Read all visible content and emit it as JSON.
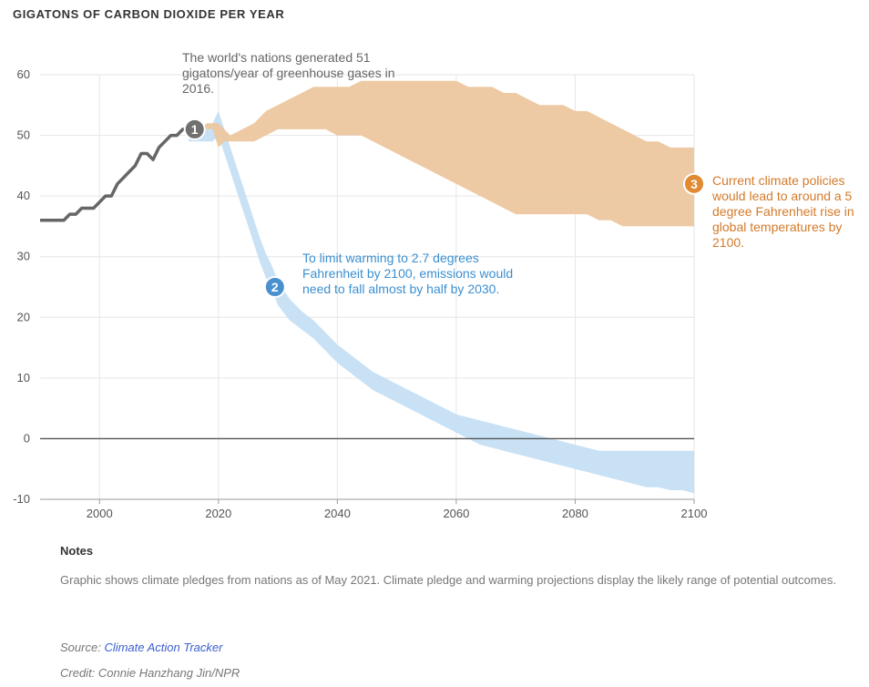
{
  "chart_data": {
    "type": "area",
    "title": "GIGATONS OF CARBON DIOXIDE PER YEAR",
    "xlim": [
      1990,
      2100
    ],
    "ylim": [
      -10,
      60
    ],
    "x_ticks": [
      2000,
      2020,
      2040,
      2060,
      2080,
      2100
    ],
    "y_ticks": [
      -10,
      0,
      10,
      20,
      30,
      40,
      50,
      60
    ],
    "grid": true,
    "series": [
      {
        "kind": "line",
        "color": "#666666",
        "x": [
          1990,
          1991,
          1992,
          1993,
          1994,
          1995,
          1996,
          1997,
          1998,
          1999,
          2000,
          2001,
          2002,
          2003,
          2004,
          2005,
          2006,
          2007,
          2008,
          2009,
          2010,
          2011,
          2012,
          2013,
          2014,
          2015,
          2016
        ],
        "y": [
          36,
          36,
          36,
          36,
          36,
          37,
          37,
          38,
          38,
          38,
          39,
          40,
          40,
          42,
          43,
          44,
          45,
          47,
          47,
          46,
          48,
          49,
          50,
          50,
          51,
          51,
          51
        ]
      },
      {
        "kind": "band",
        "color": "#c5dff4",
        "x": [
          2015,
          2016,
          2017,
          2018,
          2019,
          2020,
          2021,
          2022,
          2023,
          2024,
          2025,
          2026,
          2027,
          2028,
          2029,
          2030,
          2032,
          2034,
          2036,
          2038,
          2040,
          2042,
          2044,
          2046,
          2048,
          2050,
          2052,
          2054,
          2056,
          2058,
          2060,
          2062,
          2064,
          2066,
          2068,
          2070,
          2072,
          2074,
          2076,
          2078,
          2080,
          2082,
          2084,
          2086,
          2088,
          2090,
          2092,
          2094,
          2096,
          2098,
          2100
        ],
        "low": [
          49,
          49,
          49,
          49,
          49,
          50,
          47,
          44,
          41,
          38,
          35,
          32,
          29,
          26.5,
          24.5,
          22,
          19.5,
          18,
          16.5,
          14.5,
          12.5,
          11,
          9.5,
          8,
          7,
          6,
          5,
          4,
          3,
          2,
          1,
          0,
          -1,
          -1.5,
          -2,
          -2.5,
          -3,
          -3.5,
          -4,
          -4.5,
          -5,
          -5.5,
          -6,
          -6.5,
          -7,
          -7.5,
          -8,
          -8,
          -8.5,
          -8.5,
          -9
        ],
        "high": [
          51,
          51,
          51,
          51,
          52,
          54,
          51,
          48,
          45,
          42,
          39,
          36,
          33,
          30.5,
          28.5,
          26,
          23,
          21,
          19.5,
          17.5,
          15.5,
          14,
          12.5,
          11,
          10,
          9,
          8,
          7,
          6,
          5,
          4,
          3.5,
          3,
          2.5,
          2,
          1.5,
          1,
          0.5,
          0,
          -0.5,
          -1,
          -1.5,
          -2,
          -2,
          -2,
          -2,
          -2,
          -2,
          -2,
          -2,
          -2
        ]
      },
      {
        "kind": "band",
        "color": "#ecc79f",
        "x": [
          2017,
          2018,
          2019,
          2020,
          2021,
          2022,
          2024,
          2026,
          2028,
          2030,
          2032,
          2034,
          2036,
          2038,
          2040,
          2042,
          2044,
          2046,
          2048,
          2050,
          2052,
          2054,
          2056,
          2058,
          2060,
          2062,
          2064,
          2066,
          2068,
          2070,
          2072,
          2074,
          2076,
          2078,
          2080,
          2082,
          2084,
          2086,
          2088,
          2090,
          2092,
          2094,
          2096,
          2098,
          2100
        ],
        "low": [
          51,
          51,
          51,
          48,
          49,
          49,
          49,
          49,
          50,
          51,
          51,
          51,
          51,
          51,
          50,
          50,
          50,
          49,
          48,
          47,
          46,
          45,
          44,
          43,
          42,
          41,
          40,
          39,
          38,
          37,
          37,
          37,
          37,
          37,
          37,
          37,
          36,
          36,
          35,
          35,
          35,
          35,
          35,
          35,
          35
        ],
        "high": [
          51,
          52,
          52,
          52,
          51,
          50,
          51,
          52,
          54,
          55,
          56,
          57,
          58,
          58,
          58,
          58,
          59,
          59,
          59,
          59,
          59,
          59,
          59,
          59,
          59,
          58,
          58,
          58,
          57,
          57,
          56,
          55,
          55,
          55,
          54,
          54,
          53,
          52,
          51,
          50,
          49,
          49,
          48,
          48,
          48
        ]
      }
    ],
    "markers": [
      {
        "label": "1",
        "x": 2016,
        "y": 51,
        "color": "#707070"
      },
      {
        "label": "2",
        "x": 2029.5,
        "y": 25,
        "color": "#4a90cf"
      },
      {
        "label": "3",
        "x": 2100,
        "y": 42,
        "color": "#e08a34"
      }
    ]
  },
  "annotations": {
    "one": "The world's nations generated 51 gigatons/year of greenhouse gases in 2016.",
    "two": "To limit warming to 2.7 degrees Fahrenheit by 2100, emissions would need to fall almost by half by 2030.",
    "three": "Current climate policies would lead to around a 5 degree Fahrenheit rise in global temperatures by 2100."
  },
  "notes": {
    "heading": "Notes",
    "text": "Graphic shows climate pledges from nations as of May 2021. Climate pledge and warming projections display the likely range of potential outcomes.",
    "source_label": "Source:",
    "source_link": "Climate Action Tracker",
    "credit": "Credit: Connie Hanzhang Jin/NPR"
  }
}
